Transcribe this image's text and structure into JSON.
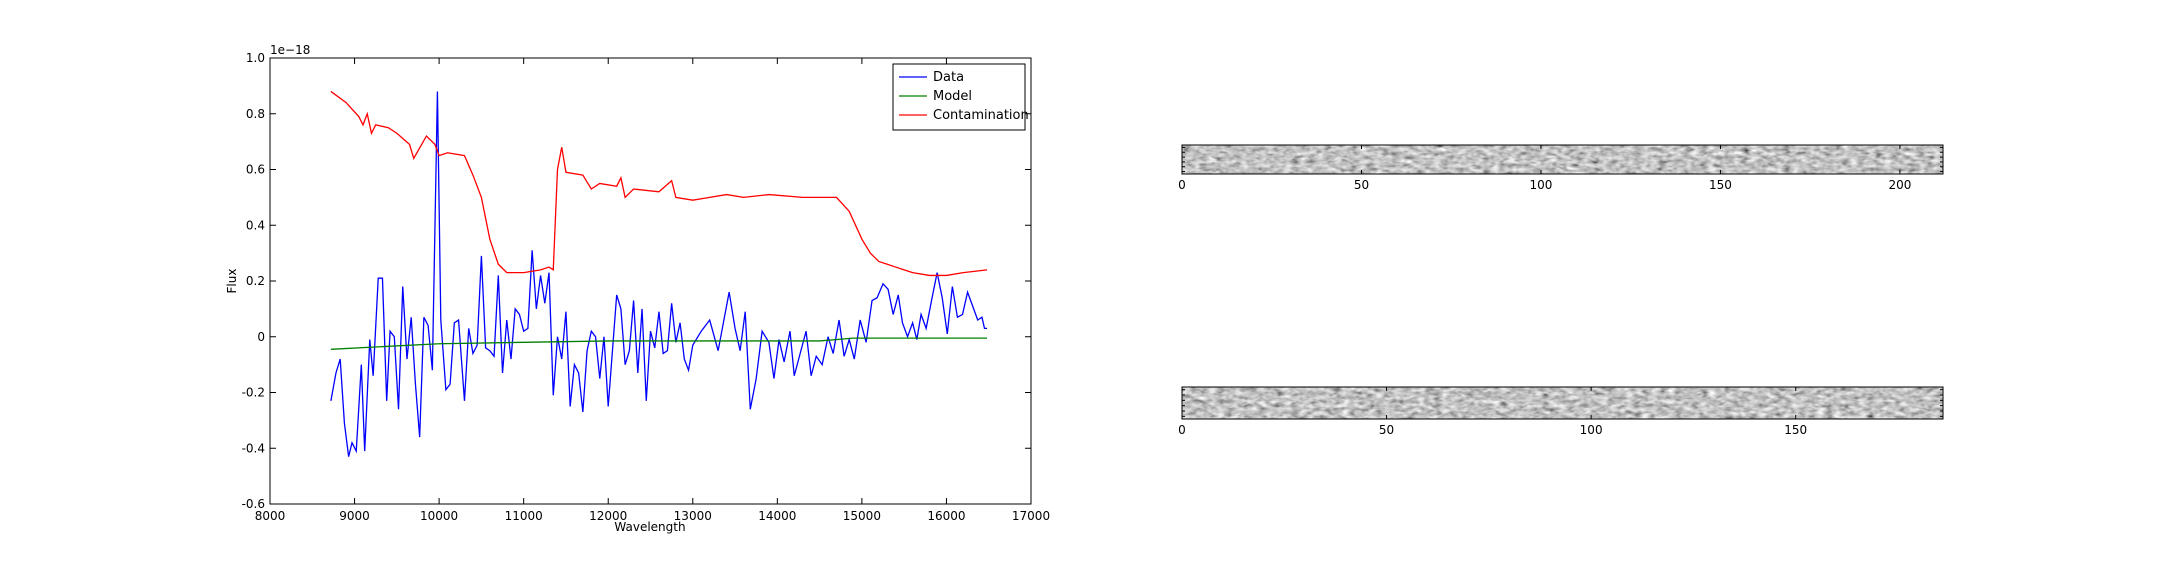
{
  "chart_data": [
    {
      "type": "line",
      "offset_label": "1e−18",
      "xlabel": "Wavelength",
      "ylabel": "Flux",
      "xlim": [
        8000,
        17000
      ],
      "xticks": [
        8000,
        9000,
        10000,
        11000,
        12000,
        13000,
        14000,
        15000,
        16000,
        17000
      ],
      "ylim": [
        -0.6,
        1.0
      ],
      "yticks": [
        -0.6,
        -0.4,
        -0.2,
        0.0,
        0.2,
        0.4,
        0.6,
        0.8,
        {
          "value": 1.0,
          "label": "1.0"
        }
      ],
      "legend": "upper right",
      "series": [
        {
          "name": "Data",
          "color": "#0000ff",
          "x": [
            8720,
            8780,
            8830,
            8880,
            8930,
            8970,
            9020,
            9080,
            9120,
            9180,
            9220,
            9280,
            9330,
            9380,
            9420,
            9470,
            9520,
            9570,
            9620,
            9670,
            9720,
            9770,
            9820,
            9870,
            9920,
            9980,
            10020,
            10080,
            10130,
            10180,
            10230,
            10300,
            10350,
            10400,
            10450,
            10500,
            10550,
            10600,
            10650,
            10700,
            10750,
            10800,
            10850,
            10900,
            10950,
            11000,
            11050,
            11100,
            11150,
            11200,
            11250,
            11300,
            11350,
            11400,
            11450,
            11500,
            11550,
            11600,
            11650,
            11700,
            11750,
            11800,
            11850,
            11900,
            11950,
            12000,
            12100,
            12150,
            12200,
            12250,
            12300,
            12350,
            12400,
            12450,
            12500,
            12550,
            12600,
            12650,
            12700,
            12750,
            12800,
            12850,
            12900,
            12950,
            13000,
            13100,
            13200,
            13300,
            13430,
            13500,
            13560,
            13620,
            13680,
            13750,
            13820,
            13900,
            13960,
            14020,
            14080,
            14150,
            14200,
            14270,
            14340,
            14400,
            14460,
            14530,
            14600,
            14660,
            14730,
            14790,
            14850,
            14910,
            14980,
            15050,
            15120,
            15180,
            15250,
            15310,
            15370,
            15430,
            15480,
            15540,
            15600,
            15650,
            15700,
            15760,
            15830,
            15890,
            15950,
            16010,
            16070,
            16130,
            16190,
            16250,
            16310,
            16370,
            16420,
            16450,
            16480
          ],
          "values": [
            -0.23,
            -0.13,
            -0.08,
            -0.31,
            -0.43,
            -0.38,
            -0.41,
            -0.1,
            -0.41,
            -0.01,
            -0.14,
            0.21,
            0.21,
            -0.23,
            0.02,
            0.0,
            -0.26,
            0.18,
            -0.08,
            0.07,
            -0.17,
            -0.36,
            0.07,
            0.04,
            -0.12,
            0.88,
            0.06,
            -0.19,
            -0.17,
            0.05,
            0.06,
            -0.23,
            0.03,
            -0.06,
            -0.03,
            0.29,
            -0.04,
            -0.05,
            -0.07,
            0.22,
            -0.13,
            0.06,
            -0.08,
            0.1,
            0.08,
            0.02,
            0.03,
            0.31,
            0.1,
            0.22,
            0.12,
            0.23,
            -0.21,
            0.0,
            -0.08,
            0.09,
            -0.25,
            -0.1,
            -0.13,
            -0.27,
            -0.05,
            0.02,
            0.0,
            -0.15,
            0.0,
            -0.25,
            0.15,
            0.1,
            -0.1,
            -0.05,
            0.13,
            -0.13,
            0.1,
            -0.23,
            0.02,
            -0.04,
            0.09,
            -0.06,
            -0.05,
            0.12,
            -0.02,
            0.05,
            -0.08,
            -0.12,
            -0.03,
            0.02,
            0.06,
            -0.05,
            0.16,
            0.03,
            -0.05,
            0.09,
            -0.26,
            -0.15,
            0.02,
            -0.02,
            -0.15,
            -0.01,
            -0.09,
            0.02,
            -0.14,
            -0.06,
            0.02,
            -0.14,
            -0.07,
            -0.1,
            0.0,
            -0.06,
            0.06,
            -0.07,
            -0.01,
            -0.08,
            0.06,
            -0.02,
            0.13,
            0.14,
            0.19,
            0.17,
            0.08,
            0.15,
            0.05,
            0.0,
            0.05,
            -0.01,
            0.08,
            0.03,
            0.14,
            0.23,
            0.14,
            0.01,
            0.18,
            0.07,
            0.08,
            0.16,
            0.11,
            0.06,
            0.07,
            0.03,
            0.03
          ]
        },
        {
          "name": "Model",
          "color": "#008000",
          "x": [
            8720,
            10000,
            12000,
            14500,
            14900,
            16480
          ],
          "values": [
            -0.045,
            -0.025,
            -0.015,
            -0.015,
            -0.005,
            -0.005
          ]
        },
        {
          "name": "Contamination",
          "color": "#ff0000",
          "x": [
            8720,
            8900,
            9050,
            9100,
            9150,
            9200,
            9250,
            9400,
            9500,
            9650,
            9700,
            9850,
            9950,
            10000,
            10100,
            10300,
            10400,
            10500,
            10600,
            10700,
            10800,
            11000,
            11200,
            11300,
            11350,
            11400,
            11450,
            11500,
            11700,
            11800,
            11900,
            12100,
            12150,
            12200,
            12300,
            12600,
            12750,
            12800,
            13000,
            13200,
            13400,
            13600,
            13900,
            14300,
            14700,
            14850,
            15000,
            15100,
            15200,
            15300,
            15400,
            15500,
            15600,
            15800,
            16000,
            16200,
            16480
          ],
          "values": [
            0.88,
            0.84,
            0.79,
            0.76,
            0.8,
            0.73,
            0.76,
            0.75,
            0.73,
            0.69,
            0.64,
            0.72,
            0.69,
            0.65,
            0.66,
            0.65,
            0.58,
            0.5,
            0.35,
            0.26,
            0.23,
            0.23,
            0.24,
            0.25,
            0.24,
            0.6,
            0.68,
            0.59,
            0.58,
            0.53,
            0.55,
            0.54,
            0.57,
            0.5,
            0.53,
            0.52,
            0.56,
            0.5,
            0.49,
            0.5,
            0.51,
            0.5,
            0.51,
            0.5,
            0.5,
            0.45,
            0.35,
            0.3,
            0.27,
            0.26,
            0.25,
            0.24,
            0.23,
            0.22,
            0.22,
            0.23,
            0.24
          ]
        }
      ]
    },
    {
      "type": "image",
      "xlim": [
        0,
        212
      ],
      "xticks": [
        0,
        50,
        100,
        150,
        200
      ]
    },
    {
      "type": "image",
      "xlim": [
        0,
        186
      ],
      "xticks": [
        0,
        50,
        100,
        150
      ]
    }
  ]
}
